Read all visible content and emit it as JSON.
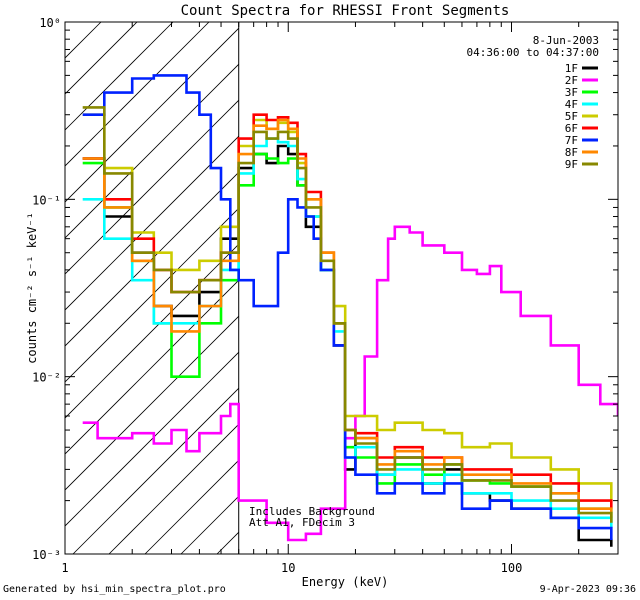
{
  "chart_data": {
    "type": "line",
    "title": "Count Spectra for RHESSI Front Segments",
    "xlabel": "Energy (keV)",
    "ylabel": "counts cm⁻² s⁻¹ keV⁻¹",
    "xscale": "log",
    "yscale": "log",
    "xlim": [
      1,
      300
    ],
    "ylim": [
      0.001,
      1
    ],
    "x_ticks": [
      {
        "value": 1,
        "label": "1"
      },
      {
        "value": 10,
        "label": "10"
      },
      {
        "value": 100,
        "label": "100"
      }
    ],
    "y_ticks": [
      {
        "value": 1,
        "label": "10⁰"
      },
      {
        "value": 0.1,
        "label": "10⁻¹"
      },
      {
        "value": 0.01,
        "label": "10⁻²"
      },
      {
        "value": 0.001,
        "label": "10⁻³"
      }
    ],
    "shaded_region": {
      "from": 1,
      "to": 6,
      "pattern": "diagonal-hatch"
    },
    "annotations": {
      "date": "8-Jun-2003",
      "time_range": "04:36:00 to 04:37:00",
      "note_line1": "Includes Background",
      "note_line2": "Att A1, FDecim 3"
    },
    "series": [
      {
        "name": "1F",
        "color": "#000000",
        "values": [
          [
            1.2,
            0.17
          ],
          [
            1.5,
            0.08
          ],
          [
            2,
            0.05
          ],
          [
            2.5,
            0.025
          ],
          [
            3,
            0.022
          ],
          [
            4,
            0.03
          ],
          [
            5,
            0.06
          ],
          [
            6,
            0.15
          ],
          [
            7,
            0.18
          ],
          [
            8,
            0.16
          ],
          [
            9,
            0.2
          ],
          [
            10,
            0.18
          ],
          [
            11,
            0.12
          ],
          [
            12,
            0.07
          ],
          [
            14,
            0.04
          ],
          [
            16,
            0.015
          ],
          [
            18,
            0.003
          ],
          [
            20,
            0.0045
          ],
          [
            25,
            0.0028
          ],
          [
            30,
            0.0035
          ],
          [
            40,
            0.0025
          ],
          [
            50,
            0.003
          ],
          [
            60,
            0.0022
          ],
          [
            80,
            0.002
          ],
          [
            100,
            0.0018
          ],
          [
            150,
            0.0016
          ],
          [
            200,
            0.0012
          ],
          [
            280,
            0.0011
          ]
        ]
      },
      {
        "name": "2F",
        "color": "#ff00ff",
        "values": [
          [
            1.2,
            0.0055
          ],
          [
            1.3,
            0.0055
          ],
          [
            1.4,
            0.0045
          ],
          [
            2,
            0.0048
          ],
          [
            2.5,
            0.0042
          ],
          [
            3,
            0.005
          ],
          [
            3.5,
            0.0038
          ],
          [
            4,
            0.0048
          ],
          [
            5,
            0.006
          ],
          [
            5.5,
            0.007
          ],
          [
            6,
            0.002
          ],
          [
            8,
            0.0015
          ],
          [
            10,
            0.0012
          ],
          [
            12,
            0.0013
          ],
          [
            14,
            0.0018
          ],
          [
            18,
            0.0045
          ],
          [
            20,
            0.006
          ],
          [
            22,
            0.013
          ],
          [
            25,
            0.035
          ],
          [
            28,
            0.06
          ],
          [
            30,
            0.07
          ],
          [
            35,
            0.065
          ],
          [
            40,
            0.055
          ],
          [
            50,
            0.05
          ],
          [
            60,
            0.04
          ],
          [
            70,
            0.038
          ],
          [
            80,
            0.042
          ],
          [
            90,
            0.03
          ],
          [
            110,
            0.022
          ],
          [
            150,
            0.015
          ],
          [
            200,
            0.009
          ],
          [
            250,
            0.007
          ],
          [
            300,
            0.006
          ]
        ]
      },
      {
        "name": "3F",
        "color": "#00ff00",
        "values": [
          [
            1.2,
            0.16
          ],
          [
            1.5,
            0.09
          ],
          [
            2,
            0.045
          ],
          [
            2.5,
            0.02
          ],
          [
            3,
            0.01
          ],
          [
            4,
            0.02
          ],
          [
            5,
            0.035
          ],
          [
            6,
            0.12
          ],
          [
            7,
            0.18
          ],
          [
            8,
            0.17
          ],
          [
            9,
            0.16
          ],
          [
            10,
            0.17
          ],
          [
            11,
            0.12
          ],
          [
            12,
            0.08
          ],
          [
            14,
            0.04
          ],
          [
            16,
            0.02
          ],
          [
            18,
            0.004
          ],
          [
            20,
            0.0035
          ],
          [
            25,
            0.0025
          ],
          [
            30,
            0.0032
          ],
          [
            40,
            0.0028
          ],
          [
            50,
            0.0032
          ],
          [
            60,
            0.0026
          ],
          [
            80,
            0.0025
          ],
          [
            100,
            0.0024
          ],
          [
            150,
            0.0022
          ],
          [
            200,
            0.0018
          ],
          [
            280,
            0.0015
          ]
        ]
      },
      {
        "name": "4F",
        "color": "#00ffff",
        "values": [
          [
            1.2,
            0.1
          ],
          [
            1.5,
            0.06
          ],
          [
            2,
            0.035
          ],
          [
            2.5,
            0.02
          ],
          [
            3,
            0.02
          ],
          [
            4,
            0.025
          ],
          [
            5,
            0.04
          ],
          [
            6,
            0.14
          ],
          [
            7,
            0.2
          ],
          [
            8,
            0.22
          ],
          [
            9,
            0.21
          ],
          [
            10,
            0.2
          ],
          [
            11,
            0.13
          ],
          [
            12,
            0.08
          ],
          [
            14,
            0.04
          ],
          [
            16,
            0.018
          ],
          [
            18,
            0.0035
          ],
          [
            20,
            0.004
          ],
          [
            25,
            0.0028
          ],
          [
            30,
            0.003
          ],
          [
            40,
            0.0025
          ],
          [
            50,
            0.0028
          ],
          [
            60,
            0.0022
          ],
          [
            80,
            0.0022
          ],
          [
            100,
            0.002
          ],
          [
            150,
            0.0018
          ],
          [
            200,
            0.0016
          ],
          [
            280,
            0.0014
          ]
        ]
      },
      {
        "name": "5F",
        "color": "#cccc00",
        "values": [
          [
            1.2,
            0.3
          ],
          [
            1.5,
            0.15
          ],
          [
            2,
            0.065
          ],
          [
            2.5,
            0.05
          ],
          [
            3,
            0.04
          ],
          [
            4,
            0.045
          ],
          [
            5,
            0.07
          ],
          [
            6,
            0.2
          ],
          [
            7,
            0.28
          ],
          [
            8,
            0.25
          ],
          [
            9,
            0.27
          ],
          [
            10,
            0.24
          ],
          [
            11,
            0.16
          ],
          [
            12,
            0.1
          ],
          [
            14,
            0.05
          ],
          [
            16,
            0.025
          ],
          [
            18,
            0.006
          ],
          [
            20,
            0.006
          ],
          [
            25,
            0.005
          ],
          [
            30,
            0.0055
          ],
          [
            40,
            0.005
          ],
          [
            50,
            0.0048
          ],
          [
            60,
            0.004
          ],
          [
            80,
            0.0042
          ],
          [
            100,
            0.0035
          ],
          [
            150,
            0.003
          ],
          [
            200,
            0.0025
          ],
          [
            280,
            0.002
          ]
        ]
      },
      {
        "name": "6F",
        "color": "#ff0000",
        "values": [
          [
            1.2,
            0.17
          ],
          [
            1.5,
            0.1
          ],
          [
            2,
            0.06
          ],
          [
            2.5,
            0.04
          ],
          [
            3,
            0.03
          ],
          [
            4,
            0.035
          ],
          [
            5,
            0.05
          ],
          [
            6,
            0.22
          ],
          [
            7,
            0.3
          ],
          [
            8,
            0.28
          ],
          [
            9,
            0.29
          ],
          [
            10,
            0.27
          ],
          [
            11,
            0.18
          ],
          [
            12,
            0.11
          ],
          [
            14,
            0.05
          ],
          [
            16,
            0.02
          ],
          [
            18,
            0.005
          ],
          [
            20,
            0.0048
          ],
          [
            25,
            0.0035
          ],
          [
            30,
            0.004
          ],
          [
            40,
            0.0035
          ],
          [
            50,
            0.0035
          ],
          [
            60,
            0.003
          ],
          [
            80,
            0.003
          ],
          [
            100,
            0.0028
          ],
          [
            150,
            0.0025
          ],
          [
            200,
            0.002
          ],
          [
            280,
            0.0018
          ]
        ]
      },
      {
        "name": "7F",
        "color": "#0022ff",
        "values": [
          [
            1.2,
            0.3
          ],
          [
            1.5,
            0.4
          ],
          [
            2,
            0.48
          ],
          [
            2.5,
            0.5
          ],
          [
            3,
            0.5
          ],
          [
            3.5,
            0.4
          ],
          [
            4,
            0.3
          ],
          [
            4.5,
            0.15
          ],
          [
            5,
            0.1
          ],
          [
            5.5,
            0.04
          ],
          [
            6,
            0.035
          ],
          [
            7,
            0.025
          ],
          [
            8,
            0.025
          ],
          [
            9,
            0.05
          ],
          [
            10,
            0.1
          ],
          [
            11,
            0.09
          ],
          [
            12,
            0.08
          ],
          [
            13,
            0.06
          ],
          [
            14,
            0.04
          ],
          [
            16,
            0.015
          ],
          [
            18,
            0.0035
          ],
          [
            20,
            0.0028
          ],
          [
            25,
            0.0022
          ],
          [
            30,
            0.0025
          ],
          [
            40,
            0.0022
          ],
          [
            50,
            0.0025
          ],
          [
            60,
            0.0018
          ],
          [
            80,
            0.002
          ],
          [
            100,
            0.0018
          ],
          [
            150,
            0.0016
          ],
          [
            200,
            0.0014
          ],
          [
            280,
            0.0012
          ]
        ]
      },
      {
        "name": "8F",
        "color": "#ff8800",
        "values": [
          [
            1.2,
            0.17
          ],
          [
            1.5,
            0.09
          ],
          [
            2,
            0.045
          ],
          [
            2.5,
            0.025
          ],
          [
            3,
            0.018
          ],
          [
            4,
            0.025
          ],
          [
            5,
            0.045
          ],
          [
            6,
            0.18
          ],
          [
            7,
            0.26
          ],
          [
            8,
            0.25
          ],
          [
            9,
            0.28
          ],
          [
            10,
            0.25
          ],
          [
            11,
            0.17
          ],
          [
            12,
            0.1
          ],
          [
            14,
            0.05
          ],
          [
            16,
            0.02
          ],
          [
            18,
            0.005
          ],
          [
            20,
            0.0045
          ],
          [
            25,
            0.0032
          ],
          [
            30,
            0.0038
          ],
          [
            40,
            0.0032
          ],
          [
            50,
            0.0035
          ],
          [
            60,
            0.0028
          ],
          [
            80,
            0.0028
          ],
          [
            100,
            0.0025
          ],
          [
            150,
            0.0022
          ],
          [
            200,
            0.0018
          ],
          [
            280,
            0.0016
          ]
        ]
      },
      {
        "name": "9F",
        "color": "#888800",
        "values": [
          [
            1.2,
            0.33
          ],
          [
            1.5,
            0.14
          ],
          [
            2,
            0.05
          ],
          [
            2.5,
            0.04
          ],
          [
            3,
            0.03
          ],
          [
            4,
            0.035
          ],
          [
            5,
            0.05
          ],
          [
            6,
            0.16
          ],
          [
            7,
            0.24
          ],
          [
            8,
            0.22
          ],
          [
            9,
            0.24
          ],
          [
            10,
            0.22
          ],
          [
            11,
            0.15
          ],
          [
            12,
            0.09
          ],
          [
            14,
            0.045
          ],
          [
            16,
            0.02
          ],
          [
            18,
            0.005
          ],
          [
            20,
            0.0042
          ],
          [
            25,
            0.003
          ],
          [
            30,
            0.0035
          ],
          [
            40,
            0.003
          ],
          [
            50,
            0.0032
          ],
          [
            60,
            0.0026
          ],
          [
            80,
            0.0026
          ],
          [
            100,
            0.0024
          ],
          [
            150,
            0.002
          ],
          [
            200,
            0.0017
          ],
          [
            280,
            0.0015
          ]
        ]
      }
    ]
  },
  "footer": {
    "left": "Generated by hsi_min_spectra_plot.pro",
    "right": "9-Apr-2023 09:36"
  }
}
